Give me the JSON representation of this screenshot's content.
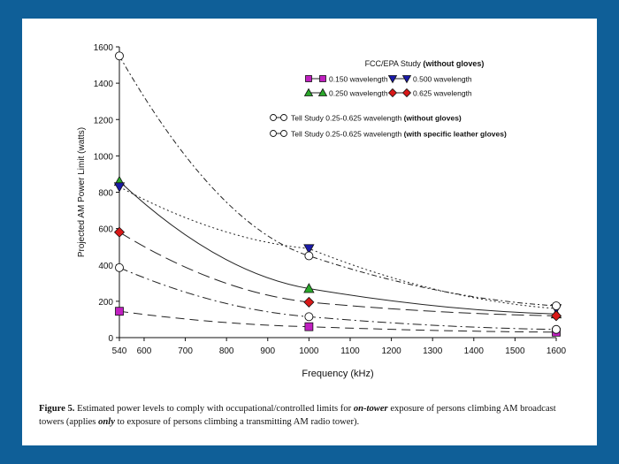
{
  "chart_data": {
    "type": "line",
    "xlabel": "Frequency (kHz)",
    "ylabel": "Projected AM Power Limit (watts)",
    "xlim": [
      540,
      1600
    ],
    "ylim": [
      0,
      1600
    ],
    "x_ticks": [
      540,
      600,
      700,
      800,
      900,
      1000,
      1100,
      1200,
      1300,
      1400,
      1500,
      1600
    ],
    "y_ticks": [
      0,
      200,
      400,
      600,
      800,
      1000,
      1200,
      1400,
      1600
    ],
    "grid": false,
    "legend": {
      "title": "FCC/EPA Study",
      "title_note": "(without gloves)",
      "placement": "top-right",
      "tell_prefix": "Tell Study 0.25-0.625  wavelength",
      "tell_without": "(without gloves)",
      "tell_with": "(with specific leather gloves)"
    },
    "series": [
      {
        "name": "0.150 wavelength",
        "marker": "square",
        "color": "#c020c0",
        "dash": "10,6",
        "x": [
          540,
          1000,
          1600
        ],
        "y": [
          145,
          60,
          30
        ]
      },
      {
        "name": "0.250 wavelength",
        "marker": "triangle-up",
        "color": "#2aa82a",
        "dash": "",
        "x": [
          540,
          1000,
          1600
        ],
        "y": [
          860,
          270,
          130
        ]
      },
      {
        "name": "0.500 wavelength",
        "marker": "triangle-down",
        "color": "#1a1aa8",
        "dash": "2,3",
        "x": [
          540,
          1000,
          1600
        ],
        "y": [
          830,
          490,
          160
        ]
      },
      {
        "name": "0.625 wavelength",
        "marker": "diamond",
        "color": "#d81818",
        "dash": "14,6",
        "x": [
          540,
          1000,
          1600
        ],
        "y": [
          580,
          195,
          120
        ]
      },
      {
        "name": "Tell Study 0.25-0.625  wavelength (without gloves)",
        "marker": "circle",
        "color": "#ffffff",
        "dash": "10,4,2,4",
        "x": [
          540,
          1000,
          1600
        ],
        "y": [
          385,
          115,
          45
        ]
      },
      {
        "name": "Tell Study 0.25-0.625  wavelength (with specific leather gloves)",
        "marker": "circle",
        "color": "#ffffff",
        "dash": "6,3,2,3",
        "x": [
          540,
          1000,
          1600
        ],
        "y": [
          1550,
          450,
          175
        ]
      }
    ]
  },
  "caption": {
    "label": "Figure 5.",
    "text_a": "  Estimated power levels to comply with occupational/controlled limits for ",
    "emph_a": "on-tower",
    "text_b": " exposure of persons climbing AM broadcast towers (applies ",
    "emph_b": "only",
    "text_c": " to exposure of persons climbing a transmitting AM radio tower)."
  }
}
